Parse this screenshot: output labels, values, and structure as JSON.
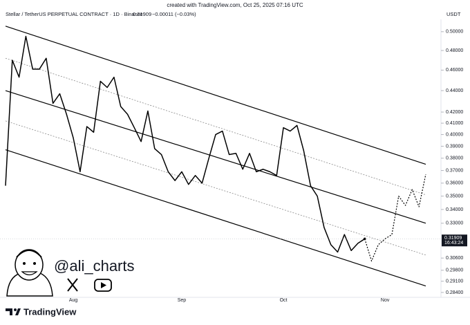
{
  "chart_data": {
    "type": "line",
    "created_with": "created with TradingView.com, Oct 25, 2025 07:16 UTC",
    "title": "Stellar / TetherUS PERPETUAL CONTRACT · 1D · Binance",
    "last_price": 0.31909,
    "change": "−0.00011 (−0.03%)",
    "currency": "USDT",
    "countdown": "16:43:24",
    "author": "@ali_charts",
    "brand": "TradingView",
    "log": true,
    "ylim": [
      0.281,
      0.512
    ],
    "yticks": [
      {
        "value": 0.5,
        "label": "0.50000"
      },
      {
        "value": 0.48,
        "label": "0.48000"
      },
      {
        "value": 0.46,
        "label": "0.46000"
      },
      {
        "value": 0.44,
        "label": "0.44000"
      },
      {
        "value": 0.42,
        "label": "0.42000"
      },
      {
        "value": 0.41,
        "label": "0.41000"
      },
      {
        "value": 0.4,
        "label": "0.40000"
      },
      {
        "value": 0.39,
        "label": "0.39000"
      },
      {
        "value": 0.38,
        "label": "0.38000"
      },
      {
        "value": 0.37,
        "label": "0.37000"
      },
      {
        "value": 0.36,
        "label": "0.36000"
      },
      {
        "value": 0.35,
        "label": "0.35000"
      },
      {
        "value": 0.34,
        "label": "0.34000"
      },
      {
        "value": 0.33,
        "label": "0.33000"
      },
      {
        "value": 0.306,
        "label": "0.30600"
      },
      {
        "value": 0.298,
        "label": "0.29800"
      },
      {
        "value": 0.291,
        "label": "0.29100"
      },
      {
        "value": 0.284,
        "label": "0.28400"
      }
    ],
    "categories": [
      null,
      null,
      null,
      null,
      null,
      null,
      null,
      null,
      null,
      null,
      "Aug",
      null,
      null,
      null,
      null,
      null,
      null,
      null,
      null,
      null,
      null,
      null,
      null,
      null,
      null,
      null,
      "Sep",
      null,
      null,
      null,
      null,
      null,
      null,
      null,
      null,
      null,
      null,
      null,
      null,
      null,
      null,
      "Oct",
      null,
      null,
      null,
      null,
      null,
      null,
      null,
      null,
      null,
      null,
      null,
      null,
      null,
      null,
      "Nov",
      null,
      null,
      null,
      null,
      null,
      null
    ],
    "series": [
      {
        "color": "#000000",
        "style": "solid",
        "values": [
          0.358,
          0.47,
          0.453,
          0.495,
          0.461,
          0.461,
          0.472,
          0.428,
          0.437,
          0.418,
          0.397,
          0.369,
          0.407,
          0.402,
          0.449,
          0.443,
          0.453,
          0.425,
          0.418,
          0.406,
          0.394,
          0.421,
          0.388,
          0.383,
          0.369,
          0.362,
          0.369,
          0.359,
          0.366,
          0.36,
          0.38,
          0.4,
          0.403,
          0.383,
          0.384,
          0.371,
          0.384,
          0.369,
          0.371,
          0.369,
          0.366,
          0.406,
          0.403,
          0.408,
          0.386,
          0.358,
          0.35,
          0.327,
          0.315,
          0.31,
          0.322,
          0.311,
          0.316,
          0.319,
          null,
          null,
          null,
          null,
          null,
          null,
          null,
          null,
          null
        ]
      },
      {
        "color": "#000000",
        "style": "dotted",
        "values": [
          null,
          null,
          null,
          null,
          null,
          null,
          null,
          null,
          null,
          null,
          null,
          null,
          null,
          null,
          null,
          null,
          null,
          null,
          null,
          null,
          null,
          null,
          null,
          null,
          null,
          null,
          null,
          null,
          null,
          null,
          null,
          null,
          null,
          null,
          null,
          null,
          null,
          null,
          null,
          null,
          null,
          null,
          null,
          null,
          null,
          null,
          null,
          null,
          null,
          null,
          null,
          null,
          null,
          0.319,
          0.304,
          0.315,
          0.319,
          0.322,
          0.35,
          0.343,
          0.355,
          0.342,
          0.367
        ]
      }
    ],
    "channels": [
      {
        "color": "#000000",
        "style": "solid",
        "values": [
          0.506,
          0.375
        ]
      },
      {
        "color": "#888888",
        "style": "dotted",
        "values": [
          0.472,
          0.351
        ]
      },
      {
        "color": "#000000",
        "style": "solid",
        "values": [
          0.44,
          0.33
        ]
      },
      {
        "color": "#888888",
        "style": "dotted",
        "values": [
          0.412,
          0.308
        ]
      },
      {
        "color": "#000000",
        "style": "solid",
        "values": [
          0.387,
          0.288
        ]
      }
    ]
  }
}
